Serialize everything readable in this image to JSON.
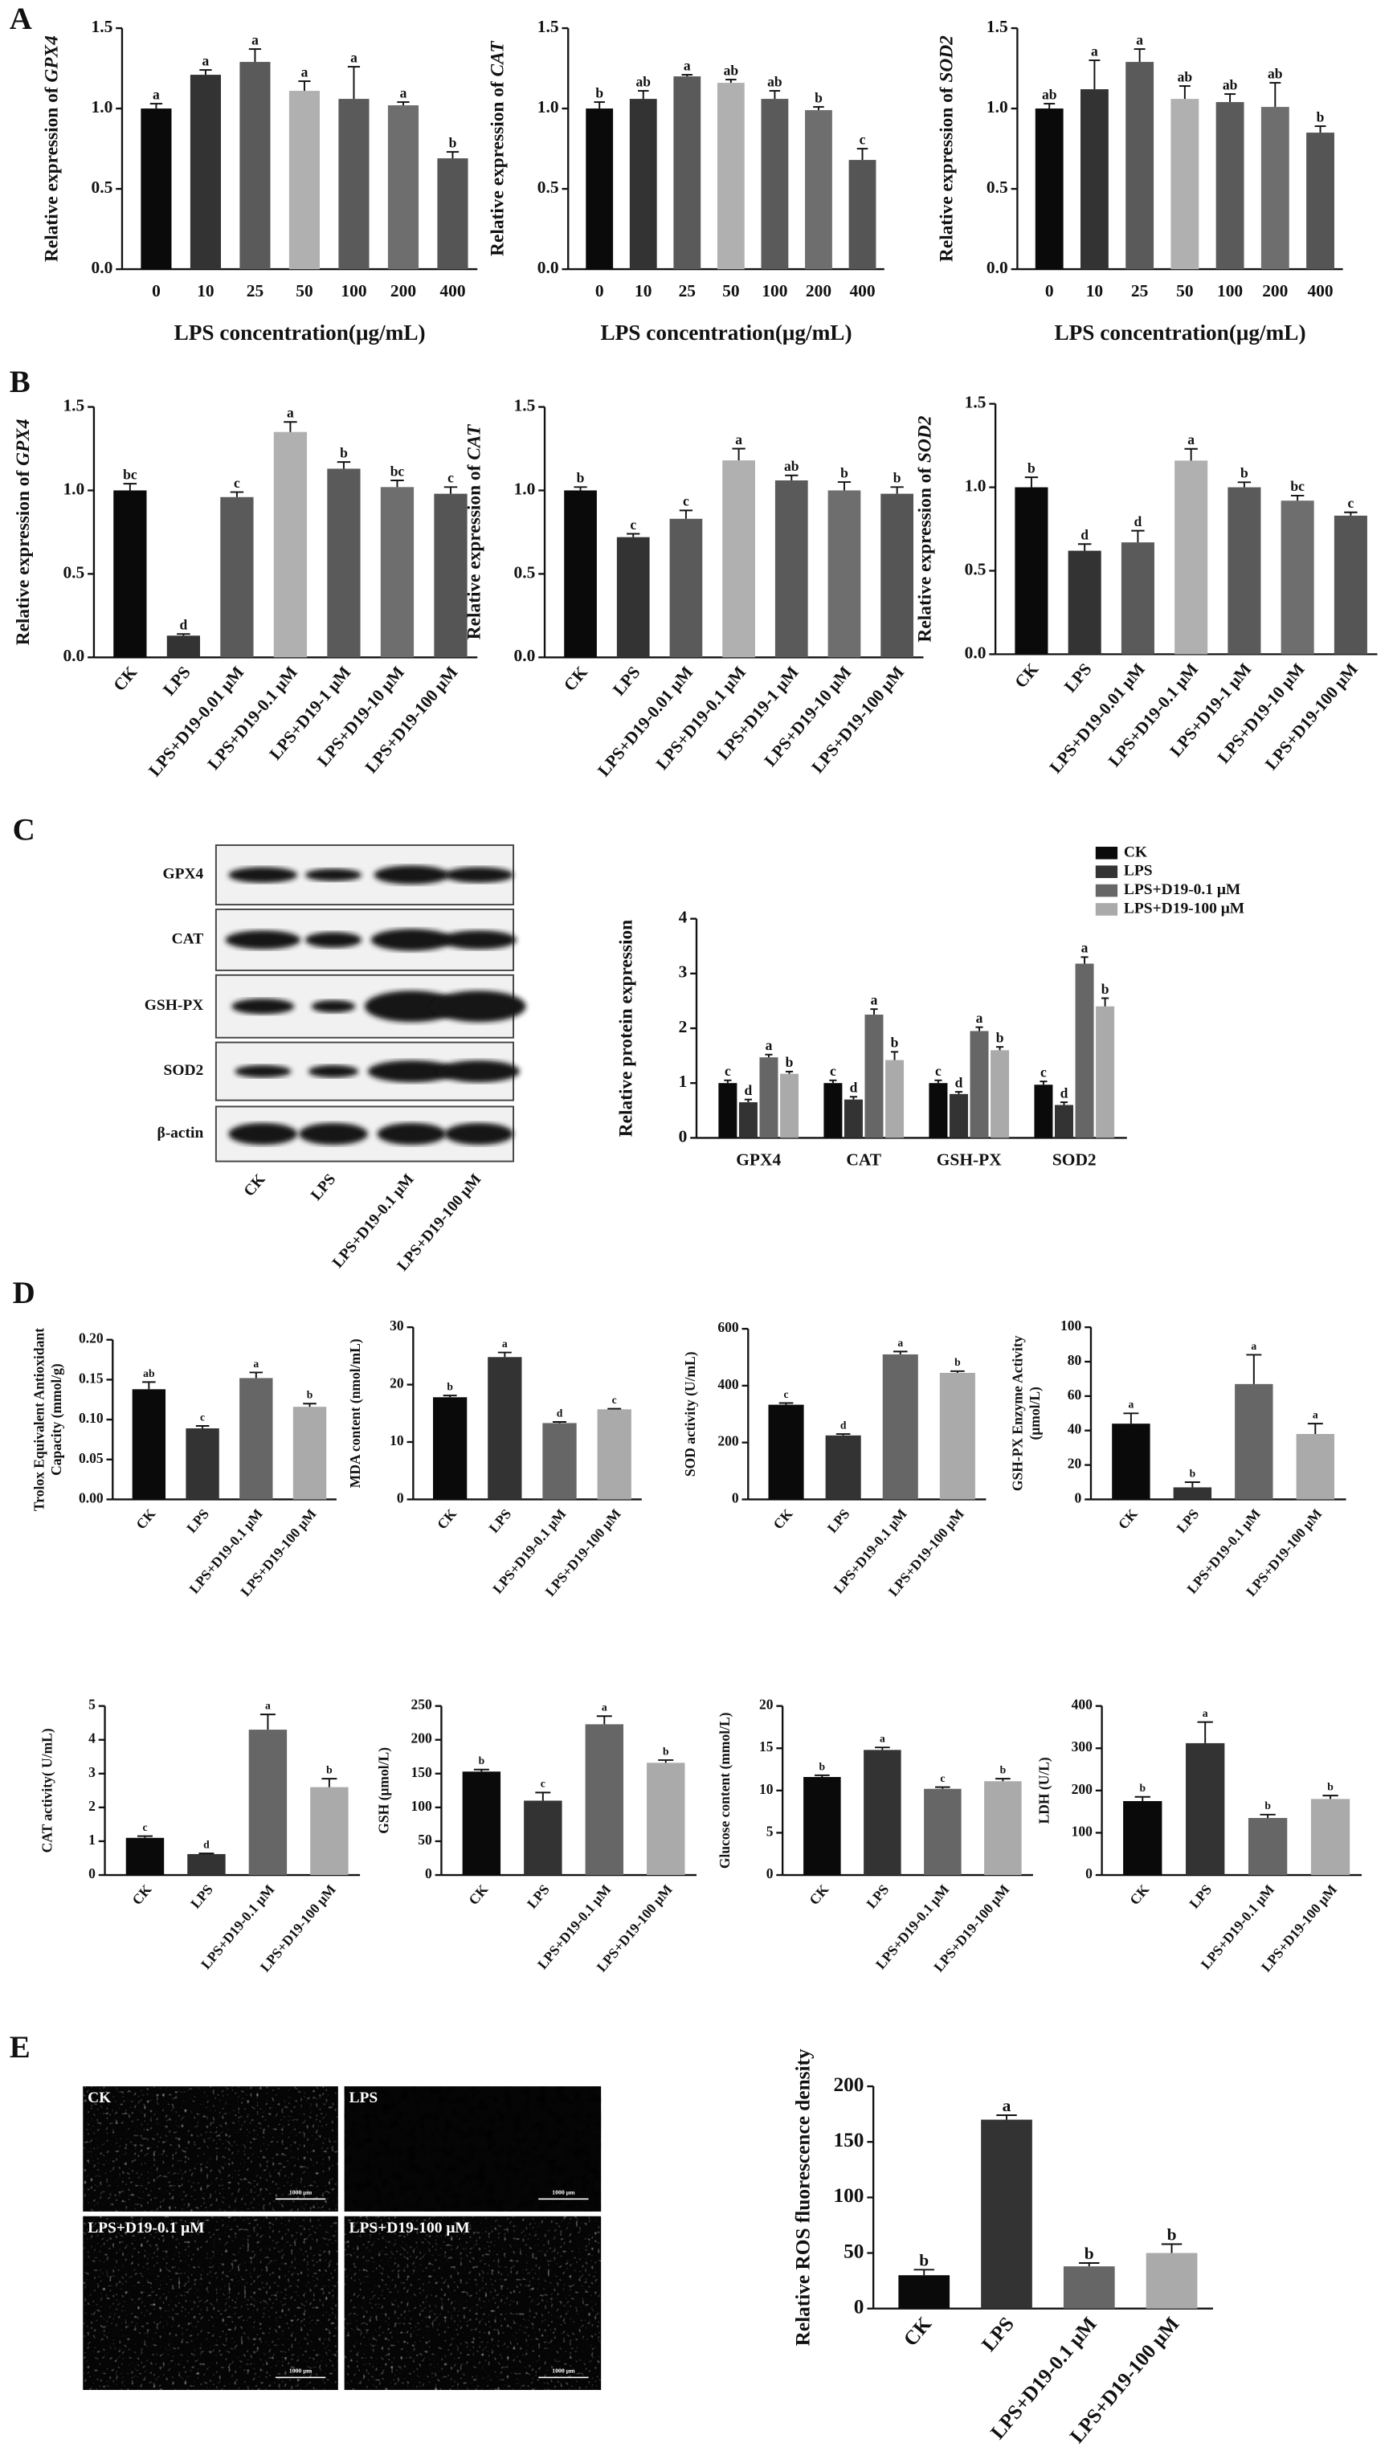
{
  "chart_data": [
    {
      "type": "bar",
      "ylabel": "Relative expression of",
      "gene": "GPX4",
      "xlabel": "LPS concentration(μg/mL)",
      "categories": [
        "0",
        "10",
        "25",
        "50",
        "100",
        "200",
        "400"
      ],
      "values": [
        1.0,
        1.21,
        1.29,
        1.11,
        1.06,
        1.02,
        0.69
      ],
      "errors": [
        0.03,
        0.03,
        0.08,
        0.06,
        0.2,
        0.02,
        0.04
      ],
      "letters": [
        "a",
        "a",
        "a",
        "a",
        "a",
        "a",
        "b"
      ],
      "colors": [
        "#0a0a0a",
        "#333333",
        "#5a5a5a",
        "#b0b0b0",
        "#5a5a5a",
        "#6e6e6e",
        "#555555"
      ],
      "ylim": [
        0,
        1.5
      ],
      "yticks": [
        {
          "value": 0,
          "label": "0.0"
        },
        0.5,
        {
          "value": 1,
          "label": "1.0"
        },
        1.5
      ]
    },
    {
      "type": "bar",
      "ylabel": "Relative expression of",
      "gene": "CAT",
      "xlabel": "LPS concentration(μg/mL)",
      "categories": [
        "0",
        "10",
        "25",
        "50",
        "100",
        "200",
        "400"
      ],
      "values": [
        1.0,
        1.06,
        1.2,
        1.16,
        1.06,
        0.99,
        0.68
      ],
      "errors": [
        0.04,
        0.05,
        0.01,
        0.02,
        0.05,
        0.02,
        0.07
      ],
      "letters": [
        "b",
        "ab",
        "a",
        "ab",
        "ab",
        "b",
        "c"
      ],
      "colors": [
        "#0a0a0a",
        "#333333",
        "#5a5a5a",
        "#b0b0b0",
        "#5a5a5a",
        "#6e6e6e",
        "#555555"
      ],
      "ylim": [
        0,
        1.5
      ],
      "yticks": [
        {
          "value": 0,
          "label": "0.0"
        },
        0.5,
        {
          "value": 1,
          "label": "1.0"
        },
        1.5
      ]
    },
    {
      "type": "bar",
      "ylabel": "Relative expression of",
      "gene": "SOD2",
      "xlabel": "LPS concentration(μg/mL)",
      "categories": [
        "0",
        "10",
        "25",
        "50",
        "100",
        "200",
        "400"
      ],
      "values": [
        1.0,
        1.12,
        1.29,
        1.06,
        1.04,
        1.01,
        0.85
      ],
      "errors": [
        0.03,
        0.18,
        0.08,
        0.08,
        0.05,
        0.15,
        0.04
      ],
      "letters": [
        "ab",
        "a",
        "a",
        "ab",
        "ab",
        "ab",
        "b"
      ],
      "colors": [
        "#0a0a0a",
        "#333333",
        "#5a5a5a",
        "#b0b0b0",
        "#5a5a5a",
        "#6e6e6e",
        "#555555"
      ],
      "ylim": [
        0,
        1.5
      ],
      "yticks": [
        {
          "value": 0,
          "label": "0.0"
        },
        0.5,
        {
          "value": 1,
          "label": "1.0"
        },
        1.5
      ]
    },
    {
      "type": "bar",
      "ylabel": "Relative expression of",
      "gene": "GPX4",
      "categories": [
        "CK",
        "LPS",
        "LPS+D19-0.01 μM",
        "LPS+D19-0.1 μM",
        "LPS+D19-1 μM",
        "LPS+D19-10 μM",
        "LPS+D19-100 μM"
      ],
      "values": [
        1.0,
        0.13,
        0.96,
        1.35,
        1.13,
        1.02,
        0.98
      ],
      "errors": [
        0.04,
        0.01,
        0.03,
        0.06,
        0.04,
        0.04,
        0.04
      ],
      "letters": [
        "bc",
        "d",
        "c",
        "a",
        "b",
        "bc",
        "c"
      ],
      "colors": [
        "#0a0a0a",
        "#333333",
        "#5a5a5a",
        "#b0b0b0",
        "#5a5a5a",
        "#6e6e6e",
        "#555555"
      ],
      "ylim": [
        0,
        1.5
      ],
      "yticks": [
        {
          "value": 0,
          "label": "0.0"
        },
        0.5,
        {
          "value": 1,
          "label": "1.0"
        },
        1.5
      ]
    },
    {
      "type": "bar",
      "ylabel": "Relative expression of",
      "gene": "CAT",
      "categories": [
        "CK",
        "LPS",
        "LPS+D19-0.01 μM",
        "LPS+D19-0.1 μM",
        "LPS+D19-1 μM",
        "LPS+D19-10 μM",
        "LPS+D19-100 μM"
      ],
      "values": [
        1.0,
        0.72,
        0.83,
        1.18,
        1.06,
        1.0,
        0.98
      ],
      "errors": [
        0.02,
        0.02,
        0.05,
        0.07,
        0.03,
        0.05,
        0.04
      ],
      "letters": [
        "b",
        "c",
        "c",
        "a",
        "ab",
        "b",
        "b"
      ],
      "colors": [
        "#0a0a0a",
        "#333333",
        "#5a5a5a",
        "#b0b0b0",
        "#5a5a5a",
        "#6e6e6e",
        "#555555"
      ],
      "ylim": [
        0,
        1.5
      ],
      "yticks": [
        {
          "value": 0,
          "label": "0.0"
        },
        0.5,
        {
          "value": 1,
          "label": "1.0"
        },
        1.5
      ]
    },
    {
      "type": "bar",
      "ylabel": "Relative expression of",
      "gene": "SOD2",
      "categories": [
        "CK",
        "LPS",
        "LPS+D19-0.01 μM",
        "LPS+D19-0.1 μM",
        "LPS+D19-1 μM",
        "LPS+D19-10 μM",
        "LPS+D19-100 μM"
      ],
      "values": [
        1.0,
        0.62,
        0.67,
        1.16,
        1.0,
        0.92,
        0.83
      ],
      "errors": [
        0.06,
        0.04,
        0.07,
        0.07,
        0.03,
        0.03,
        0.02
      ],
      "letters": [
        "b",
        "d",
        "d",
        "a",
        "b",
        "bc",
        "c"
      ],
      "colors": [
        "#0a0a0a",
        "#333333",
        "#5a5a5a",
        "#b0b0b0",
        "#5a5a5a",
        "#6e6e6e",
        "#555555"
      ],
      "ylim": [
        0,
        1.5
      ],
      "yticks": [
        {
          "value": 0,
          "label": "0.0"
        },
        0.5,
        {
          "value": 1,
          "label": "1.0"
        },
        1.5
      ]
    },
    {
      "type": "grouped_bar",
      "ylabel": "Relative protein expression",
      "legend": "top-right",
      "categories": [
        "GPX4",
        "CAT",
        "GSH-PX",
        "SOD2"
      ],
      "series": [
        {
          "name": "CK",
          "color": "#0a0a0a",
          "values": [
            1.0,
            1.0,
            1.0,
            0.97
          ],
          "errors": [
            0.05,
            0.05,
            0.05,
            0.06
          ],
          "letters": [
            "c",
            "c",
            "c",
            "c"
          ]
        },
        {
          "name": "LPS",
          "color": "#333333",
          "values": [
            0.65,
            0.7,
            0.8,
            0.6
          ],
          "errors": [
            0.05,
            0.05,
            0.04,
            0.05
          ],
          "letters": [
            "d",
            "d",
            "d",
            "d"
          ]
        },
        {
          "name": "LPS+D19-0.1 μM",
          "color": "#666666",
          "values": [
            1.47,
            2.25,
            1.95,
            3.18
          ],
          "errors": [
            0.05,
            0.1,
            0.07,
            0.12
          ],
          "letters": [
            "a",
            "a",
            "a",
            "a"
          ]
        },
        {
          "name": "LPS+D19-100 μM",
          "color": "#aaaaaa",
          "values": [
            1.17,
            1.42,
            1.6,
            2.4
          ],
          "errors": [
            0.04,
            0.15,
            0.06,
            0.15
          ],
          "letters": [
            "b",
            "b",
            "b",
            "b"
          ]
        }
      ],
      "ylim": [
        0,
        4
      ],
      "yticks": [
        0,
        1,
        2,
        3,
        4
      ]
    },
    {
      "type": "bar",
      "ylabel": [
        "Trolox Equivalent Antioxidant",
        "Capacity (mmol/g)"
      ],
      "categories": [
        "CK",
        "LPS",
        "LPS+D19-0.1 μM",
        "LPS+D19-100 μM"
      ],
      "values": [
        0.138,
        0.089,
        0.152,
        0.116
      ],
      "errors": [
        0.009,
        0.003,
        0.007,
        0.004
      ],
      "letters": [
        "ab",
        "c",
        "a",
        "b"
      ],
      "colors": [
        "#0a0a0a",
        "#333333",
        "#666666",
        "#aaaaaa"
      ],
      "ylim": [
        0,
        0.2
      ],
      "yticks": [
        {
          "value": 0,
          "label": "0.00"
        },
        {
          "value": 0.05,
          "label": "0.05"
        },
        {
          "value": 0.1,
          "label": "0.10"
        },
        {
          "value": 0.15,
          "label": "0.15"
        },
        {
          "value": 0.2,
          "label": "0.20"
        }
      ]
    },
    {
      "type": "bar",
      "ylabel": "MDA content (nmol/mL)",
      "categories": [
        "CK",
        "LPS",
        "LPS+D19-0.1 μM",
        "LPS+D19-100 μM"
      ],
      "values": [
        17.8,
        24.8,
        13.3,
        15.7
      ],
      "errors": [
        0.3,
        0.8,
        0.2,
        0.1
      ],
      "letters": [
        "b",
        "a",
        "d",
        "c"
      ],
      "colors": [
        "#0a0a0a",
        "#333333",
        "#666666",
        "#aaaaaa"
      ],
      "ylim": [
        0,
        30
      ],
      "yticks": [
        0,
        10,
        20,
        30
      ]
    },
    {
      "type": "bar",
      "ylabel": "SOD activity (U/mL)",
      "categories": [
        "CK",
        "LPS",
        "LPS+D19-0.1 μM",
        "LPS+D19-100 μM"
      ],
      "values": [
        333,
        225,
        510,
        445
      ],
      "errors": [
        6,
        5,
        10,
        6
      ],
      "letters": [
        "c",
        "d",
        "a",
        "b"
      ],
      "colors": [
        "#0a0a0a",
        "#333333",
        "#666666",
        "#aaaaaa"
      ],
      "ylim": [
        0,
        600
      ],
      "yticks": [
        0,
        200,
        400,
        600
      ]
    },
    {
      "type": "bar",
      "ylabel": [
        "GSH-PX Enzyme Activity",
        "(μmol/L)"
      ],
      "categories": [
        "CK",
        "LPS",
        "LPS+D19-0.1 μM",
        "LPS+D19-100 μM"
      ],
      "values": [
        44,
        7,
        67,
        38
      ],
      "errors": [
        6,
        3,
        17,
        6
      ],
      "letters": [
        "a",
        "b",
        "a",
        "a"
      ],
      "colors": [
        "#0a0a0a",
        "#333333",
        "#666666",
        "#aaaaaa"
      ],
      "ylim": [
        0,
        100
      ],
      "yticks": [
        0,
        20,
        40,
        60,
        80,
        100
      ]
    },
    {
      "type": "bar",
      "ylabel": "CAT activity( U/mL)",
      "categories": [
        "CK",
        "LPS",
        "LPS+D19-0.1 μM",
        "LPS+D19-100 μM"
      ],
      "values": [
        1.1,
        0.62,
        4.3,
        2.6
      ],
      "errors": [
        0.05,
        0.02,
        0.45,
        0.25
      ],
      "letters": [
        "c",
        "d",
        "a",
        "b"
      ],
      "colors": [
        "#0a0a0a",
        "#333333",
        "#666666",
        "#aaaaaa"
      ],
      "ylim": [
        0,
        5
      ],
      "yticks": [
        0,
        1,
        2,
        3,
        4,
        5
      ]
    },
    {
      "type": "bar",
      "ylabel": "GSH (μmol/L)",
      "categories": [
        "CK",
        "LPS",
        "LPS+D19-0.1 μM",
        "LPS+D19-100 μM"
      ],
      "values": [
        153,
        110,
        223,
        166
      ],
      "errors": [
        3,
        12,
        12,
        4
      ],
      "letters": [
        "b",
        "c",
        "a",
        "b"
      ],
      "colors": [
        "#0a0a0a",
        "#333333",
        "#666666",
        "#aaaaaa"
      ],
      "ylim": [
        0,
        250
      ],
      "yticks": [
        0,
        50,
        100,
        150,
        200,
        250
      ]
    },
    {
      "type": "bar",
      "ylabel": "Glucose content (mmol/L)",
      "categories": [
        "CK",
        "LPS",
        "LPS+D19-0.1 μM",
        "LPS+D19-100 μM"
      ],
      "values": [
        11.6,
        14.8,
        10.2,
        11.1
      ],
      "errors": [
        0.2,
        0.3,
        0.2,
        0.3
      ],
      "letters": [
        "b",
        "a",
        "c",
        "b"
      ],
      "colors": [
        "#0a0a0a",
        "#333333",
        "#666666",
        "#aaaaaa"
      ],
      "ylim": [
        0,
        20
      ],
      "yticks": [
        0,
        5,
        10,
        15,
        20
      ]
    },
    {
      "type": "bar",
      "ylabel": "LDH (U/L)",
      "categories": [
        "CK",
        "LPS",
        "LPS+D19-0.1 μM",
        "LPS+D19-100 μM"
      ],
      "values": [
        175,
        312,
        135,
        180
      ],
      "errors": [
        10,
        50,
        8,
        8
      ],
      "letters": [
        "b",
        "a",
        "b",
        "b"
      ],
      "colors": [
        "#0a0a0a",
        "#333333",
        "#666666",
        "#aaaaaa"
      ],
      "ylim": [
        0,
        400
      ],
      "yticks": [
        0,
        100,
        200,
        300,
        400
      ]
    },
    {
      "type": "bar",
      "ylabel": "Relative ROS fluorescence density",
      "categories": [
        "CK",
        "LPS",
        "LPS+D19-0.1 μM",
        "LPS+D19-100 μM"
      ],
      "values": [
        30,
        170,
        38,
        50
      ],
      "errors": [
        5,
        4,
        3,
        8
      ],
      "letters": [
        "b",
        "a",
        "b",
        "b"
      ],
      "colors": [
        "#0a0a0a",
        "#333333",
        "#666666",
        "#aaaaaa"
      ],
      "ylim": [
        0,
        200
      ],
      "yticks": [
        0,
        50,
        100,
        150,
        200
      ]
    }
  ],
  "panel_labels": [
    "A",
    "B",
    "C",
    "D",
    "E"
  ],
  "blot": {
    "proteins": [
      "GPX4",
      "CAT",
      "GSH-PX",
      "SOD2",
      "β-actin"
    ],
    "lanes": [
      "CK",
      "LPS",
      "LPS+D19-0.1 μM",
      "LPS+D19-100 μM"
    ]
  },
  "micrographs": {
    "labels": [
      "CK",
      "LPS",
      "LPS+D19-0.1 μM",
      "LPS+D19-100 μM"
    ],
    "scale_bar": "1000 μm"
  }
}
